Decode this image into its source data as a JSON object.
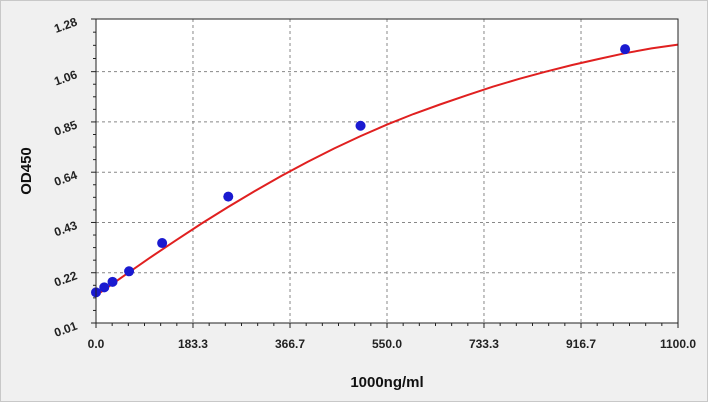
{
  "chart_data": {
    "type": "scatter",
    "xlabel": "1000ng/ml",
    "ylabel": "OD450",
    "xlim": [
      0,
      1100
    ],
    "ylim": [
      0.01,
      1.28
    ],
    "x_ticks": [
      "0.0",
      "183.3",
      "366.7",
      "550.0",
      "733.3",
      "916.7",
      "1100.0"
    ],
    "x_tick_values": [
      0,
      183.3,
      366.7,
      550,
      733.3,
      916.7,
      1100
    ],
    "y_ticks": [
      "0.01",
      "0.22",
      "0.43",
      "0.64",
      "0.85",
      "1.06",
      "1.28"
    ],
    "y_tick_values": [
      0.01,
      0.22,
      0.43,
      0.64,
      0.85,
      1.06,
      1.28
    ],
    "grid": true,
    "series": [
      {
        "kind": "points",
        "color": "#1a1ad0",
        "x": [
          0,
          15.6,
          31.25,
          62.5,
          125,
          250,
          500,
          1000
        ],
        "y": [
          0.138,
          0.159,
          0.182,
          0.226,
          0.344,
          0.538,
          0.834,
          1.154
        ]
      },
      {
        "kind": "fit-curve",
        "color": "#e02020",
        "x": [
          0,
          50,
          100,
          150,
          200,
          250,
          300,
          350,
          400,
          450,
          500,
          550,
          600,
          650,
          700,
          750,
          800,
          850,
          900,
          950,
          1000,
          1050,
          1100
        ],
        "y": [
          0.125,
          0.203,
          0.28,
          0.354,
          0.426,
          0.495,
          0.561,
          0.624,
          0.683,
          0.739,
          0.791,
          0.839,
          0.883,
          0.923,
          0.961,
          0.997,
          1.03,
          1.06,
          1.088,
          1.113,
          1.137,
          1.157,
          1.173
        ]
      }
    ]
  }
}
